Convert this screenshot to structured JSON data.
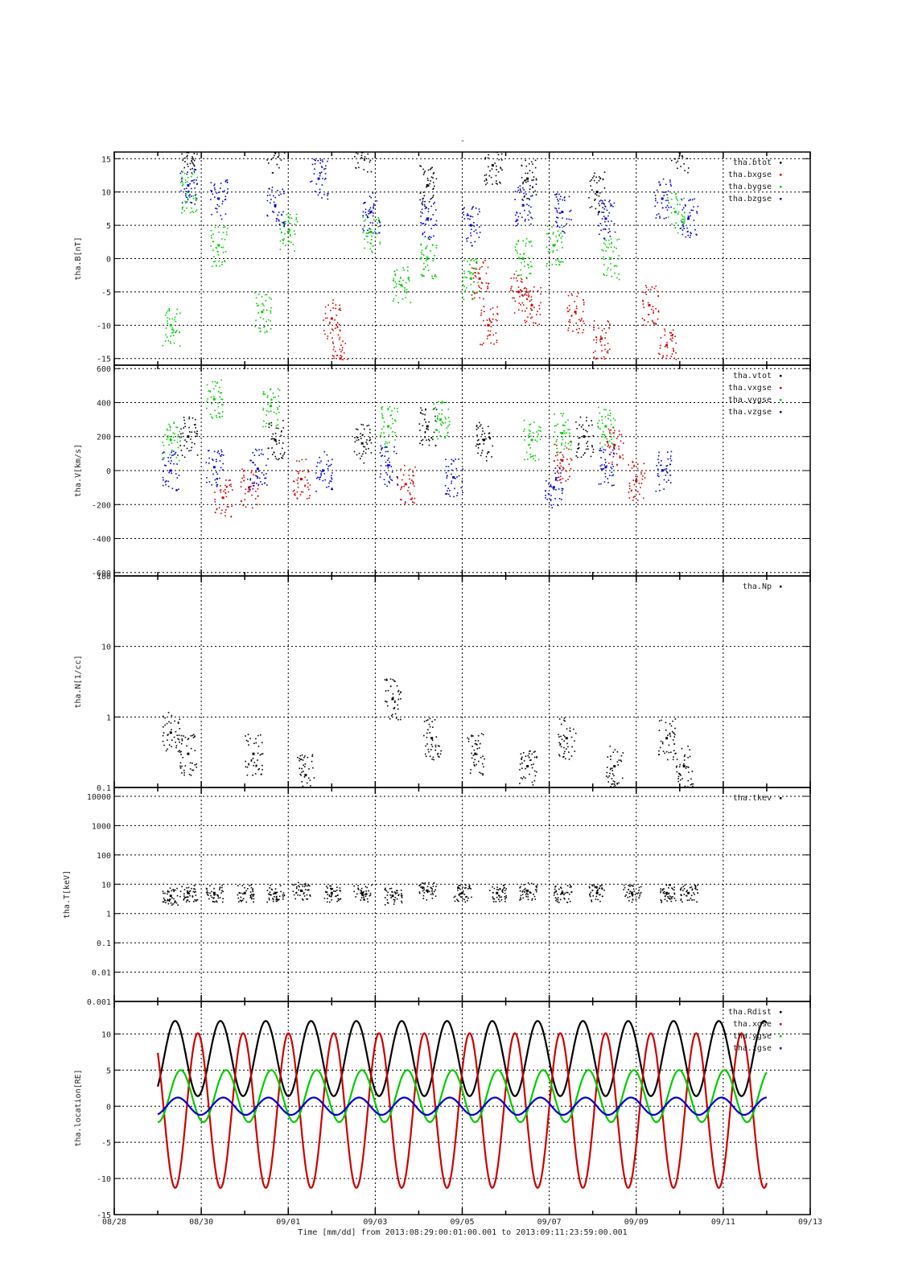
{
  "figure": {
    "top_mark": "-",
    "x_axis": {
      "ticks": [
        "08/28",
        "08/30",
        "09/01",
        "09/03",
        "09/05",
        "09/07",
        "09/09",
        "09/11",
        "09/13"
      ],
      "label": "Time [mm/dd]  from 2013:08:29:00:01:00.001  to  2013:09:11:23:59:00.001"
    }
  },
  "colors": {
    "black": "#000000",
    "red": "#cc0000",
    "green": "#00cc00",
    "blue": "#0000cc",
    "grid": "#000000"
  },
  "chart_data": [
    {
      "type": "scatter",
      "ylabel": "tha.B[nT]",
      "ylim": [
        -16,
        16
      ],
      "yticks": [
        "15",
        "10",
        "5",
        "0",
        "-5",
        "-10",
        "-15"
      ],
      "grid": true,
      "legend_position": "top-right",
      "series": [
        {
          "name": "tha.btot",
          "color": "black",
          "x": [
            0.7,
            2.7,
            4.7,
            6.2,
            7.7,
            8.5,
            10.1,
            12.0
          ],
          "y": [
            16,
            16,
            16,
            11,
            14,
            12,
            10,
            16
          ]
        },
        {
          "name": "tha.bxgse",
          "color": "red",
          "x": [
            4.0,
            4.2,
            7.4,
            7.6,
            8.3,
            8.6,
            9.6,
            10.2,
            11.3,
            11.7
          ],
          "y": [
            -9,
            -15,
            -3,
            -10,
            -5,
            -7,
            -8,
            -12,
            -7,
            -13
          ]
        },
        {
          "name": "tha.bygse",
          "color": "green",
          "x": [
            0.3,
            0.7,
            1.4,
            2.4,
            3.0,
            4.9,
            5.6,
            6.2,
            7.2,
            8.4,
            9.1,
            10.4,
            11.9
          ],
          "y": [
            -10,
            10,
            2,
            -8,
            4,
            4,
            -4,
            0,
            -3,
            0,
            2,
            0,
            7
          ]
        },
        {
          "name": "tha.bzgse",
          "color": "blue",
          "x": [
            0.7,
            1.4,
            2.7,
            3.7,
            4.9,
            6.2,
            7.2,
            8.4,
            9.3,
            10.3,
            11.6,
            12.2
          ],
          "y": [
            11,
            9,
            8,
            12,
            7,
            6,
            5,
            8,
            7,
            6,
            9,
            6
          ]
        }
      ]
    },
    {
      "type": "scatter",
      "ylabel": "tha.V[km/s]",
      "ylim": [
        -620,
        620
      ],
      "yticks": [
        "600",
        "400",
        "200",
        "0",
        "-200",
        "-400",
        "-600"
      ],
      "grid": true,
      "legend_position": "top-right",
      "series": [
        {
          "name": "tha.vtot",
          "color": "black",
          "x": [
            0.7,
            2.7,
            4.7,
            6.2,
            7.5,
            9.8
          ],
          "y": [
            200,
            180,
            160,
            260,
            180,
            200
          ]
        },
        {
          "name": "tha.vxgse",
          "color": "red",
          "x": [
            1.5,
            2.1,
            3.3,
            5.7,
            9.3,
            10.5,
            11.0
          ],
          "y": [
            -160,
            -100,
            -50,
            -80,
            60,
            150,
            -60
          ]
        },
        {
          "name": "tha.vygse",
          "color": "green",
          "x": [
            0.3,
            1.3,
            2.6,
            5.3,
            6.5,
            8.6,
            9.3,
            10.3
          ],
          "y": [
            180,
            420,
            380,
            260,
            300,
            180,
            220,
            260
          ]
        },
        {
          "name": "tha.vzgse",
          "color": "blue",
          "x": [
            0.3,
            1.3,
            2.3,
            3.8,
            5.3,
            6.8,
            9.1,
            10.3,
            11.6
          ],
          "y": [
            0,
            20,
            10,
            0,
            30,
            -40,
            -100,
            20,
            0
          ]
        }
      ]
    },
    {
      "type": "scatter",
      "ylabel": "tha.N[1/cc]",
      "log_scale": true,
      "ylim": [
        0.1,
        100
      ],
      "yticks": [
        "100",
        "10",
        "1",
        "0.1"
      ],
      "grid": true,
      "legend_position": "top-right",
      "series": [
        {
          "name": "tha.Np",
          "color": "black",
          "x": [
            0.3,
            0.7,
            2.2,
            3.4,
            5.4,
            6.3,
            7.3,
            8.5,
            9.4,
            10.5,
            11.7,
            12.1
          ],
          "y": [
            0.6,
            0.3,
            0.3,
            0.15,
            1.8,
            0.5,
            0.3,
            0.2,
            0.5,
            0.2,
            0.5,
            0.2
          ]
        }
      ]
    },
    {
      "type": "scatter",
      "ylabel": "tha.T[keV]",
      "log_scale": true,
      "ylim": [
        0.001,
        20000
      ],
      "yticks": [
        "10000",
        "1000",
        "100",
        "10",
        "1",
        "0.1",
        "0.01",
        "0.001"
      ],
      "grid": true,
      "legend_position": "top-right",
      "series": [
        {
          "name": "tha.tkev",
          "color": "black",
          "x": [
            0.3,
            0.7,
            1.3,
            2.0,
            2.7,
            3.3,
            4.0,
            4.7,
            5.4,
            6.2,
            7.0,
            7.8,
            8.5,
            9.3,
            10.1,
            10.9,
            11.7,
            12.2
          ],
          "y": [
            4,
            5,
            5,
            5,
            5,
            6,
            5,
            5,
            4,
            6,
            5,
            5,
            6,
            5,
            5,
            5,
            5,
            5
          ]
        }
      ]
    },
    {
      "type": "line",
      "ylabel": "tha.location[RE]",
      "ylim": [
        -15,
        14.5
      ],
      "yticks": [
        "10",
        "5",
        "0",
        "-5",
        "-10",
        "-15"
      ],
      "grid": true,
      "legend_position": "top-right",
      "series": [
        {
          "name": "tha.Rdist",
          "color": "black"
        },
        {
          "name": "tha.xgse",
          "color": "red"
        },
        {
          "name": "tha.ygse",
          "color": "green"
        },
        {
          "name": "tha.zgse",
          "color": "blue"
        }
      ]
    }
  ]
}
